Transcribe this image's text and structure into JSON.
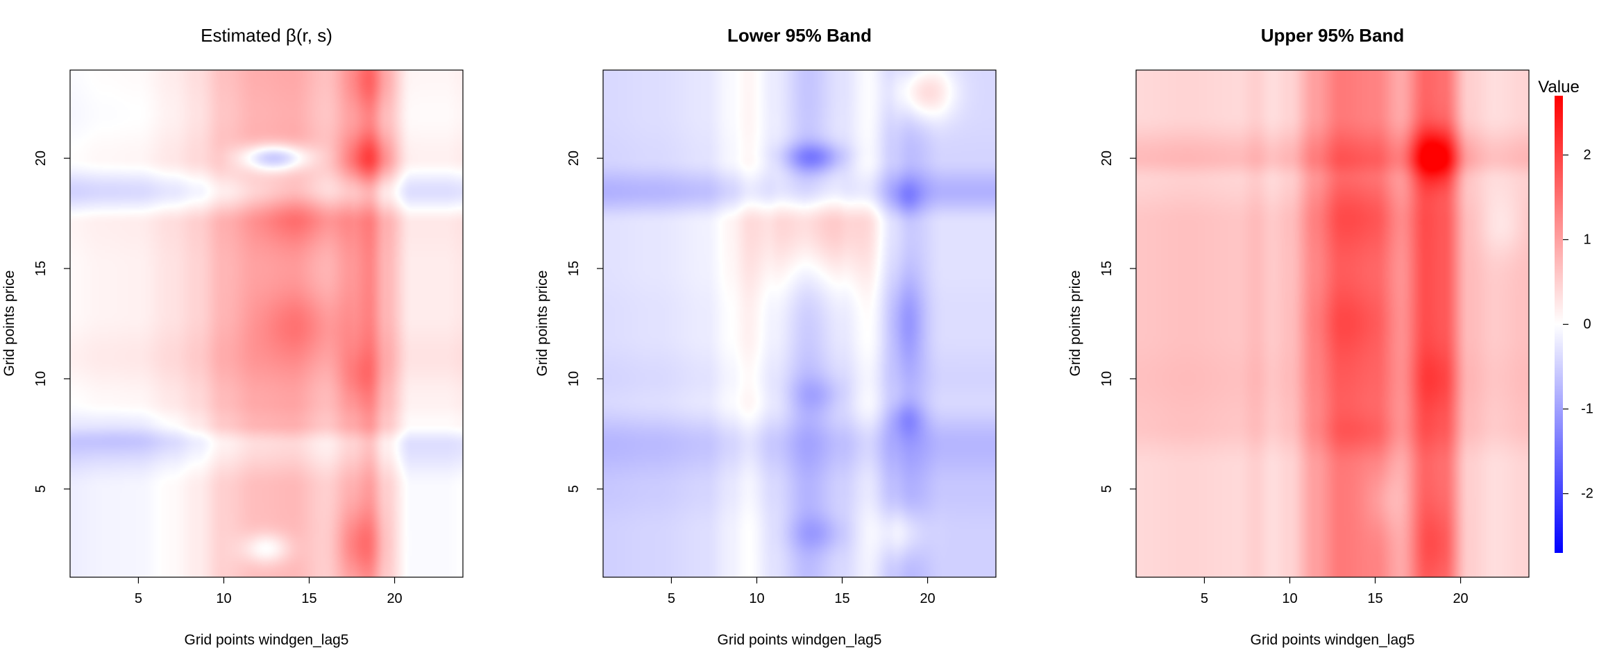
{
  "chart_data": [
    {
      "type": "heatmap",
      "title": "Estimated β(r, s)",
      "title_weight": "normal",
      "xlabel": "Grid points windgen_lag5",
      "ylabel": "Grid points price",
      "xlim": [
        1,
        24
      ],
      "ylim": [
        1,
        24
      ],
      "xticks": [
        5,
        10,
        15,
        20
      ],
      "yticks": [
        5,
        10,
        15,
        20
      ],
      "baseline": 0,
      "x_profile": [
        [
          1,
          -0.18
        ],
        [
          3,
          -0.12
        ],
        [
          5,
          -0.1
        ],
        [
          7,
          0.05
        ],
        [
          8.5,
          0.2
        ],
        [
          10,
          0.5
        ],
        [
          12,
          0.7
        ],
        [
          14,
          0.75
        ],
        [
          16,
          0.5
        ],
        [
          17.5,
          0.8
        ],
        [
          18.5,
          1.0
        ],
        [
          19.5,
          0.5
        ],
        [
          21,
          -0.05
        ],
        [
          23,
          -0.05
        ],
        [
          24,
          0.0
        ]
      ],
      "y_profile": [
        [
          1,
          0.0
        ],
        [
          5,
          0.0
        ],
        [
          7,
          -0.3
        ],
        [
          8,
          0.1
        ],
        [
          9,
          0.2
        ],
        [
          11,
          0.35
        ],
        [
          13,
          0.25
        ],
        [
          15,
          0.25
        ],
        [
          17,
          0.3
        ],
        [
          18.5,
          -0.3
        ],
        [
          20,
          0.2
        ],
        [
          22,
          0.1
        ],
        [
          24,
          0.15
        ]
      ],
      "blobs": [
        {
          "x": 13,
          "y": 20,
          "sx": 1.5,
          "sy": 0.45,
          "v": -1.5
        },
        {
          "x": 14.5,
          "y": 17.5,
          "sx": 1.8,
          "sy": 1.0,
          "v": 0.5
        },
        {
          "x": 14.5,
          "y": 12.5,
          "sx": 1.8,
          "sy": 1.0,
          "v": 0.45
        },
        {
          "x": 18.5,
          "y": 20,
          "sx": 0.9,
          "sy": 0.8,
          "v": 0.8
        },
        {
          "x": 18.5,
          "y": 23.5,
          "sx": 0.9,
          "sy": 1.0,
          "v": 0.5
        },
        {
          "x": 18,
          "y": 2.5,
          "sx": 0.9,
          "sy": 1.1,
          "v": 0.6
        },
        {
          "x": 18,
          "y": 10,
          "sx": 0.8,
          "sy": 0.8,
          "v": 0.3
        },
        {
          "x": 12.5,
          "y": 2.3,
          "sx": 1.0,
          "sy": 0.5,
          "v": -0.7
        },
        {
          "x": 4,
          "y": 7.5,
          "sx": 3.0,
          "sy": 0.6,
          "v": -0.3
        }
      ]
    },
    {
      "type": "heatmap",
      "title": "Lower 95% Band",
      "title_weight": "bold",
      "xlabel": "Grid points windgen_lag5",
      "ylabel": "Grid points price",
      "xlim": [
        1,
        24
      ],
      "ylim": [
        1,
        24
      ],
      "xticks": [
        5,
        10,
        15,
        20
      ],
      "yticks": [
        5,
        10,
        15,
        20
      ],
      "baseline": 0,
      "x_profile": [
        [
          1,
          -0.5
        ],
        [
          4,
          -0.45
        ],
        [
          7,
          -0.35
        ],
        [
          8.5,
          -0.15
        ],
        [
          9.5,
          0.0
        ],
        [
          11,
          -0.3
        ],
        [
          13,
          -0.7
        ],
        [
          15,
          -0.4
        ],
        [
          16.5,
          -0.15
        ],
        [
          18,
          -0.6
        ],
        [
          19,
          -0.75
        ],
        [
          21,
          -0.5
        ],
        [
          24,
          -0.5
        ]
      ],
      "y_profile": [
        [
          1,
          0.0
        ],
        [
          3,
          0.0
        ],
        [
          5,
          -0.1
        ],
        [
          7,
          -0.3
        ],
        [
          9,
          0.1
        ],
        [
          10,
          0.05
        ],
        [
          12,
          0.15
        ],
        [
          13,
          0.15
        ],
        [
          15,
          0.2
        ],
        [
          17,
          0.2
        ],
        [
          18.5,
          -0.35
        ],
        [
          20,
          0.05
        ],
        [
          22,
          0.1
        ],
        [
          24,
          0.1
        ]
      ],
      "blobs": [
        {
          "x": 13.5,
          "y": 17,
          "sx": 2.2,
          "sy": 1.8,
          "v": 0.9
        },
        {
          "x": 13.3,
          "y": 20,
          "sx": 1.3,
          "sy": 0.5,
          "v": -1.0
        },
        {
          "x": 19.8,
          "y": 23,
          "sx": 1.2,
          "sy": 0.9,
          "v": 0.9
        },
        {
          "x": 18.8,
          "y": 18.2,
          "sx": 0.6,
          "sy": 0.6,
          "v": -0.4
        },
        {
          "x": 18.8,
          "y": 12.5,
          "sx": 0.7,
          "sy": 1.5,
          "v": -0.5
        },
        {
          "x": 18.8,
          "y": 8.2,
          "sx": 0.7,
          "sy": 0.6,
          "v": -0.5
        },
        {
          "x": 13.5,
          "y": 9.2,
          "sx": 1.2,
          "sy": 0.6,
          "v": -0.4
        },
        {
          "x": 13.5,
          "y": 3,
          "sx": 1.2,
          "sy": 0.6,
          "v": -0.4
        },
        {
          "x": 18.5,
          "y": 3,
          "sx": 1.0,
          "sy": 0.8,
          "v": 0.5
        }
      ]
    },
    {
      "type": "heatmap",
      "title": "Upper 95% Band",
      "title_weight": "bold",
      "xlabel": "Grid points windgen_lag5",
      "ylabel": "Grid points price",
      "xlim": [
        1,
        24
      ],
      "ylim": [
        1,
        24
      ],
      "xticks": [
        5,
        10,
        15,
        20
      ],
      "yticks": [
        5,
        10,
        15,
        20
      ],
      "baseline": 0,
      "x_profile": [
        [
          1,
          0.3
        ],
        [
          4,
          0.35
        ],
        [
          7,
          0.3
        ],
        [
          8,
          0.4
        ],
        [
          9,
          0.25
        ],
        [
          10,
          0.35
        ],
        [
          11.5,
          0.9
        ],
        [
          13,
          1.3
        ],
        [
          15,
          1.2
        ],
        [
          16.5,
          0.8
        ],
        [
          18,
          1.5
        ],
        [
          19,
          1.4
        ],
        [
          20.5,
          0.4
        ],
        [
          22,
          0.25
        ],
        [
          24,
          0.35
        ]
      ],
      "y_profile": [
        [
          1,
          0.1
        ],
        [
          4,
          0.1
        ],
        [
          6,
          0.1
        ],
        [
          8,
          0.3
        ],
        [
          10,
          0.35
        ],
        [
          12,
          0.3
        ],
        [
          14,
          0.3
        ],
        [
          17,
          0.3
        ],
        [
          19,
          0.15
        ],
        [
          20,
          0.4
        ],
        [
          22,
          0.1
        ],
        [
          24,
          0.1
        ]
      ],
      "blobs": [
        {
          "x": 18.5,
          "y": 20,
          "sx": 1.0,
          "sy": 0.9,
          "v": 1.1
        },
        {
          "x": 14,
          "y": 17.5,
          "sx": 1.8,
          "sy": 1.3,
          "v": 0.3
        },
        {
          "x": 13.5,
          "y": 12.5,
          "sx": 1.6,
          "sy": 1.2,
          "v": 0.3
        },
        {
          "x": 18.5,
          "y": 10,
          "sx": 0.8,
          "sy": 1.0,
          "v": 0.2
        },
        {
          "x": 14,
          "y": 7.5,
          "sx": 1.5,
          "sy": 0.7,
          "v": 0.2
        },
        {
          "x": 18.5,
          "y": 2.5,
          "sx": 0.8,
          "sy": 1.2,
          "v": 0.3
        },
        {
          "x": 22.5,
          "y": 17,
          "sx": 1.0,
          "sy": 1.0,
          "v": -0.3
        },
        {
          "x": 15.5,
          "y": 4.5,
          "sx": 0.8,
          "sy": 1.0,
          "v": -0.3
        }
      ]
    }
  ],
  "legend": {
    "title": "Value",
    "min": -2.7,
    "max": 2.7,
    "ticks": [
      -2,
      -1,
      0,
      1,
      2
    ],
    "colors": {
      "low": "#0000ff",
      "mid": "#ffffff",
      "high": "#ff0000"
    }
  }
}
